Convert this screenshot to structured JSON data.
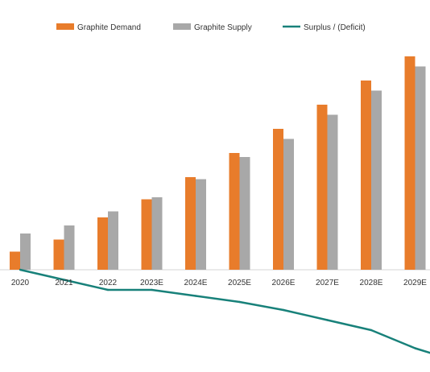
{
  "chart_data": {
    "type": "bar",
    "title": "",
    "xlabel": "",
    "ylabel": "",
    "categories": [
      "2020",
      "2021",
      "2022",
      "2023E",
      "2024E",
      "2025E",
      "2026E",
      "2027E",
      "2028E",
      "2029E"
    ],
    "series": [
      {
        "name": "Graphite Demand",
        "type": "bar",
        "color": "#E87C2B",
        "values": [
          0.9,
          1.5,
          2.6,
          3.5,
          4.6,
          5.8,
          7.0,
          8.2,
          9.4,
          10.6
        ]
      },
      {
        "name": "Graphite Supply",
        "type": "bar",
        "color": "#A8A8A8",
        "values": [
          1.8,
          2.2,
          2.9,
          3.6,
          4.5,
          5.6,
          6.5,
          7.7,
          8.9,
          10.1
        ]
      },
      {
        "name": "Surplus / (Deficit)",
        "type": "line",
        "color": "#18817A",
        "values": [
          0.0,
          -0.5,
          -1.0,
          -1.0,
          -1.3,
          -1.6,
          -2.0,
          -2.5,
          -3.0,
          -3.9
        ]
      }
    ],
    "ylim": [
      -5,
      11
    ],
    "grid": false,
    "legend_position": "top"
  }
}
